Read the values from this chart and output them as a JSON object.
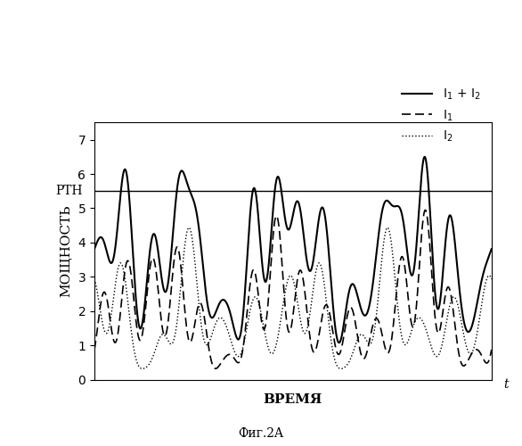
{
  "title": "",
  "xlabel": "ВРЕМЯ",
  "ylabel": "МОЩНОСТЬ",
  "pth_label": "PТН",
  "pth_value": 5.5,
  "ylim": [
    0,
    7.5
  ],
  "xlim": [
    0,
    100
  ],
  "yticks": [
    0,
    1,
    2,
    3,
    4,
    5,
    6,
    7
  ],
  "legend_labels": [
    "I₁ + I₂",
    "I₁",
    "I₂"
  ],
  "fig_label": "Фиг.2A",
  "background_color": "#ffffff",
  "line_color": "#000000",
  "t_arrow_label": "t"
}
